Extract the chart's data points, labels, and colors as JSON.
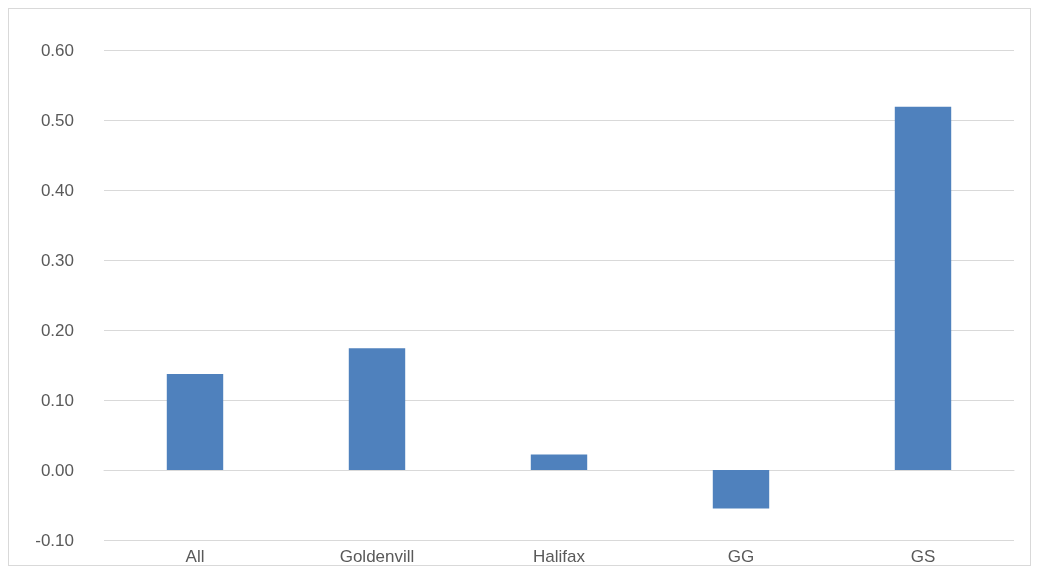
{
  "chart_data": {
    "type": "bar",
    "categories": [
      "All",
      "Goldenvill",
      "Halifax",
      "GG",
      "GS"
    ],
    "values": [
      0.137,
      0.174,
      0.022,
      -0.055,
      0.519
    ],
    "color": "#4f81bd",
    "ylim": [
      -0.1,
      0.6
    ],
    "yticks": [
      {
        "value": -0.1,
        "label": "-0.10"
      },
      {
        "value": 0,
        "label": "0.00"
      },
      {
        "value": 0.1,
        "label": "0.10"
      },
      {
        "value": 0.2,
        "label": "0.20"
      },
      {
        "value": 0.3,
        "label": "0.30"
      },
      {
        "value": 0.4,
        "label": "0.40"
      },
      {
        "value": 0.5,
        "label": "0.50"
      },
      {
        "value": 0.6,
        "label": "0.60"
      }
    ],
    "grid": "y"
  }
}
